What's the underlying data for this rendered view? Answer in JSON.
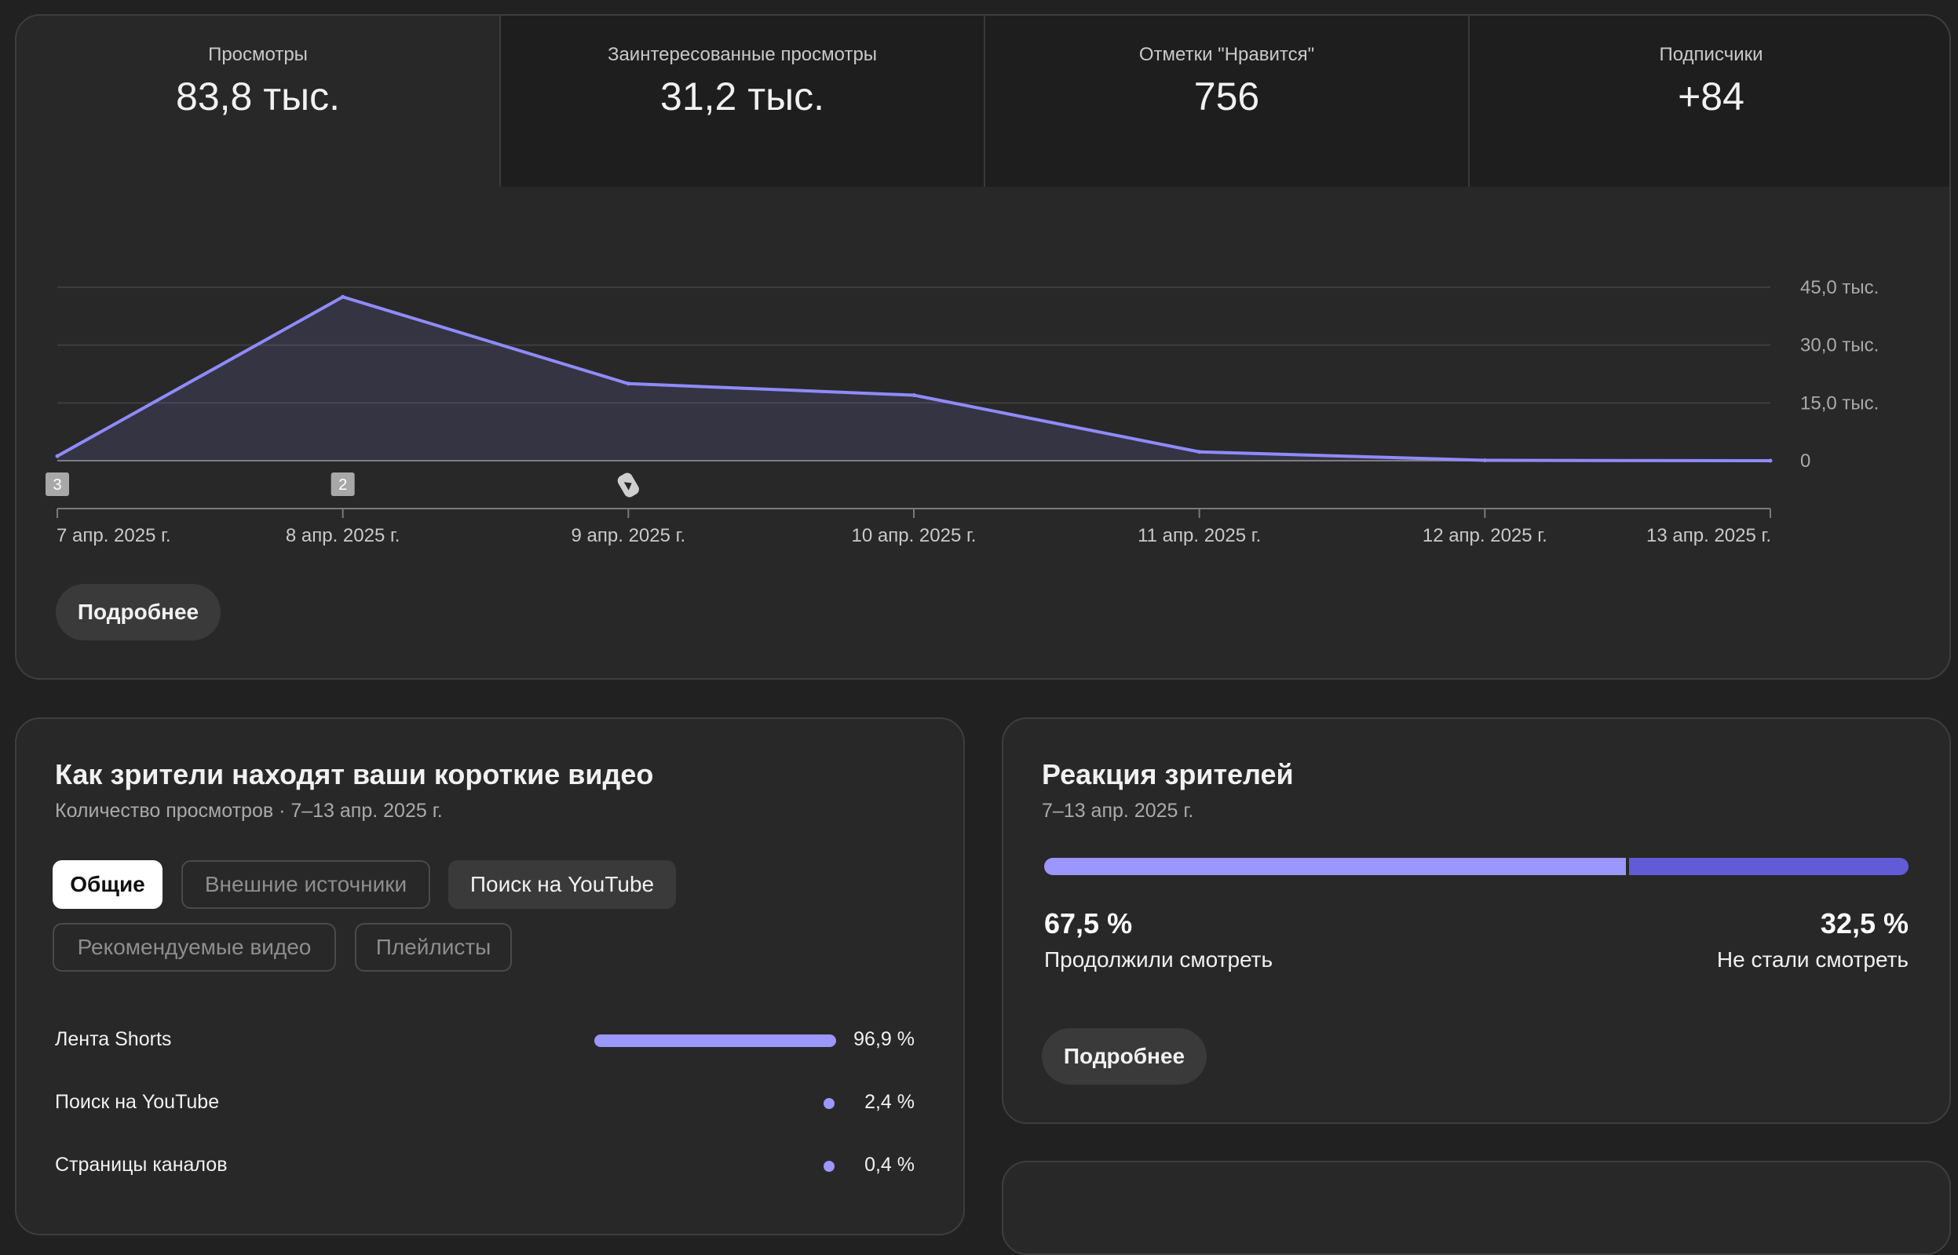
{
  "metrics": [
    {
      "label": "Просмотры",
      "value": "83,8 тыс."
    },
    {
      "label": "Заинтересованные просмотры",
      "value": "31,2 тыс."
    },
    {
      "label": "Отметки \"Нравится\"",
      "value": "756"
    },
    {
      "label": "Подписчики",
      "value": "+84"
    }
  ],
  "overview": {
    "more_button": "Подробнее"
  },
  "chart_data": {
    "type": "area",
    "x": [
      "7 апр. 2025 г.",
      "8 апр. 2025 г.",
      "9 апр. 2025 г.",
      "10 апр. 2025 г.",
      "11 апр. 2025 г.",
      "12 апр. 2025 г.",
      "13 апр. 2025 г."
    ],
    "series": [
      {
        "values": [
          1200,
          42500,
          20000,
          17000,
          2300,
          100,
          0
        ]
      }
    ],
    "y_ticks": [
      {
        "value": 0,
        "label": "0"
      },
      {
        "value": 15000,
        "label": "15,0 тыс."
      },
      {
        "value": 30000,
        "label": "30,0 тыс."
      },
      {
        "value": 45000,
        "label": "45,0 тыс."
      }
    ],
    "ylim": [
      0,
      45000
    ],
    "markers": [
      {
        "x_index": 0,
        "label": "3"
      },
      {
        "x_index": 1,
        "label": "2"
      },
      {
        "x_index": 2,
        "icon": "shorts-icon"
      }
    ],
    "line_color": "#8f8bff",
    "grid": true
  },
  "sources": {
    "title": "Как зрители находят ваши короткие видео",
    "subtitle": "Количество просмотров · 7–13 апр. 2025 г.",
    "chips": [
      "Общие",
      "Внешние источники",
      "Поиск на YouTube",
      "Рекомендуемые видео",
      "Плейлисты"
    ],
    "rows": [
      {
        "label": "Лента Shorts",
        "value": "96,9 %",
        "pct": 96.9
      },
      {
        "label": "Поиск на YouTube",
        "value": "2,4 %",
        "pct": 2.4
      },
      {
        "label": "Страницы каналов",
        "value": "0,4 %",
        "pct": 0.4
      }
    ]
  },
  "reaction": {
    "title": "Реакция зрителей",
    "subtitle": "7–13 апр. 2025 г.",
    "continued_pct": "67,5 %",
    "continued_label": "Продолжили смотреть",
    "stopped_pct": "32,5 %",
    "stopped_label": "Не стали смотреть",
    "continued_fraction": 0.675,
    "more_button": "Подробнее",
    "colors": {
      "continued": "#9b97ff",
      "stopped": "#615bd6"
    }
  }
}
